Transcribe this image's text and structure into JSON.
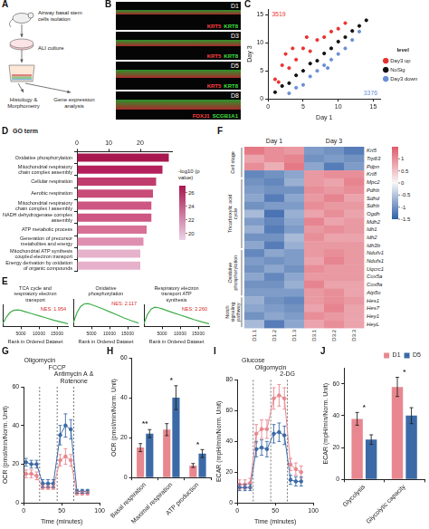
{
  "diagram": {
    "panel": "A",
    "steps": [
      "Airway basal stem cells isolation",
      "ALI culture",
      "Histology & Morphometry",
      "Gene expression analysis"
    ]
  },
  "images": {
    "panel": "B",
    "images": [
      {
        "label": "D1",
        "stains": [
          {
            "text": "KRT5",
            "color": "#ff4040"
          },
          {
            "text": "KRT8",
            "color": "#40e040"
          }
        ]
      },
      {
        "label": "D3",
        "stains": [
          {
            "text": "KRT5",
            "color": "#ff4040"
          },
          {
            "text": "KRT8",
            "color": "#40e040"
          }
        ]
      },
      {
        "label": "D5",
        "stains": [
          {
            "text": "KRT5",
            "color": "#ff4040"
          },
          {
            "text": "KRT8",
            "color": "#40e040"
          }
        ]
      },
      {
        "label": "D8",
        "stains": [
          {
            "text": "FOXJ1",
            "color": "#ff4040"
          },
          {
            "text": "SCGB1A1",
            "color": "#40e040"
          }
        ]
      }
    ]
  },
  "chart_data": [
    {
      "panel": "C",
      "type": "scatter",
      "x_label": "Day 1",
      "y_label": "Day 3",
      "marker": "circle",
      "xlim": [
        0,
        16
      ],
      "ylim": [
        0,
        16
      ],
      "xticks": [
        0,
        5,
        10,
        15
      ],
      "yticks": [
        0,
        5,
        10,
        15
      ],
      "legend": "right",
      "legend_title": "level",
      "series": [
        {
          "name": "Day3 up",
          "color": "#e8312f",
          "x": [
            1,
            1.5,
            2,
            2.5,
            3,
            3.5,
            4,
            5,
            5.5,
            6,
            7,
            8,
            9,
            10,
            11
          ],
          "values": [
            3.5,
            3,
            6,
            8,
            5.5,
            9,
            7,
            9,
            11,
            8.5,
            10.5,
            11,
            12,
            12.5,
            13.5
          ]
        },
        {
          "name": "NoSig",
          "color": "#111111",
          "x": [
            1,
            2,
            3,
            4,
            5,
            6,
            7,
            8,
            9,
            10,
            11,
            12,
            13,
            14
          ],
          "values": [
            1.2,
            2.3,
            2.8,
            4.2,
            5,
            6.3,
            6.8,
            8.1,
            9,
            10.2,
            11,
            12.1,
            13,
            14
          ]
        },
        {
          "name": "Day3 down",
          "color": "#6a8fd6",
          "x": [
            3,
            4,
            5,
            6,
            7,
            8,
            8.5,
            9,
            10,
            11,
            12,
            13
          ],
          "values": [
            1,
            2,
            2.5,
            4,
            5,
            6,
            5.5,
            7,
            8,
            9,
            10.5,
            12
          ]
        }
      ],
      "annotations": [
        {
          "text": "3519",
          "color": "#e8312f"
        },
        {
          "text": "3376",
          "color": "#6a8fd6"
        }
      ]
    },
    {
      "panel": "D",
      "type": "bar",
      "orientation": "horizontal",
      "title": "GO term",
      "categories": [
        "Oxidative phosphorylation",
        "Mitochondrial respiratory chain complex assembly",
        "Cellular respiration",
        "Aerobic respiration",
        "Mitochondrial respiratory chain complex I assembly",
        "NADH dehydrogenase complex assembly",
        "ATP metabolic process",
        "Generation of precursor metabolites and energy",
        "Mitochondrial ATP synthesis coupled electron transport",
        "Energy derivation by oxidation of organic compounds"
      ],
      "values": [
        29,
        27,
        25,
        24,
        23.5,
        23.5,
        22,
        21,
        20,
        20
      ],
      "colors": [
        "#a8174f",
        "#b3205c",
        "#c13c6e",
        "#c94b78",
        "#cd5682",
        "#cd5682",
        "#d77196",
        "#df8fb0",
        "#e6b1cb",
        "#e6b1cb"
      ],
      "xlim": [
        0,
        30
      ],
      "xticks": [
        0,
        10,
        20
      ],
      "colorbar": {
        "title": "-log10 (p value)",
        "range": [
          19,
          27
        ],
        "ticks": [
          20,
          22,
          24,
          26
        ],
        "colors": [
          "#ecd3e6",
          "#a8174f"
        ]
      }
    },
    {
      "panel": "E",
      "type": "line",
      "title": "TCA cycle and respiratory electron transport",
      "x_label": "Rank in Ordered Dataset",
      "x": [
        0,
        1000,
        2000,
        3000,
        4000,
        5000,
        6000,
        8000,
        10000,
        12000,
        14000,
        16000,
        18000
      ],
      "values": [
        0,
        0.25,
        0.42,
        0.5,
        0.52,
        0.5,
        0.46,
        0.38,
        0.3,
        0.22,
        0.14,
        0.07,
        0
      ],
      "color": "#3fae49",
      "xlim": [
        0,
        18000
      ],
      "xticks": [
        5000,
        10000,
        15000
      ],
      "ylim": [
        -0.1,
        0.7
      ],
      "tick_labels": "x",
      "annotations": [
        {
          "text": "NES: 1.954",
          "color": "#d62728"
        }
      ]
    },
    {
      "type": "line",
      "title": "Oxidative phosphorylation",
      "x_label": "Rank in Ordered Dataset",
      "x": [
        0,
        1000,
        2000,
        3000,
        4000,
        5000,
        6000,
        8000,
        10000,
        12000,
        14000,
        16000,
        18000
      ],
      "values": [
        0,
        0.3,
        0.48,
        0.56,
        0.57,
        0.54,
        0.5,
        0.42,
        0.33,
        0.24,
        0.15,
        0.07,
        0
      ],
      "color": "#3fae49",
      "xlim": [
        0,
        18000
      ],
      "xticks": [
        5000,
        10000,
        15000
      ],
      "ylim": [
        -0.1,
        0.7
      ],
      "tick_labels": "x",
      "annotations": [
        {
          "text": "NES: 2.117",
          "color": "#d62728"
        }
      ]
    },
    {
      "type": "line",
      "title": "Respiratory electron transport ATP synthesis",
      "x_label": "Rank in Ordered Dataset",
      "x": [
        0,
        1000,
        2000,
        3000,
        4000,
        5000,
        6000,
        8000,
        10000,
        12000,
        14000,
        16000,
        18000
      ],
      "values": [
        0,
        0.35,
        0.55,
        0.62,
        0.6,
        0.56,
        0.51,
        0.42,
        0.33,
        0.24,
        0.15,
        0.07,
        0
      ],
      "color": "#3fae49",
      "xlim": [
        0,
        18000
      ],
      "xticks": [
        5000,
        10000,
        15000
      ],
      "ylim": [
        -0.1,
        0.7
      ],
      "tick_labels": "x",
      "annotations": [
        {
          "text": "NES: 2.260",
          "color": "#d62728"
        }
      ]
    },
    {
      "panel": "F",
      "type": "heatmap",
      "column_groups": [
        {
          "label": "Day 1",
          "columns": [
            "D1.1",
            "D1.2",
            "D1.3"
          ]
        },
        {
          "label": "Day 3",
          "columns": [
            "D3.1",
            "D3.2",
            "D3.3"
          ]
        }
      ],
      "row_groups": [
        {
          "label": "Cell stage",
          "rows": [
            "Krt5",
            "Trp63",
            "Pdpn",
            "Krt8"
          ],
          "cells": [
            [
              1.2,
              1.0,
              0.9,
              -0.9,
              -1.0,
              -1.2
            ],
            [
              0.8,
              1.0,
              1.1,
              -1.0,
              -0.9,
              -1.0
            ],
            [
              1.0,
              0.7,
              1.2,
              -0.8,
              -1.2,
              -0.9
            ],
            [
              -1.1,
              -1.0,
              -0.8,
              0.9,
              1.0,
              1.0
            ]
          ]
        },
        {
          "label": "Tricarboxylic acid cycle",
          "rows": [
            "Mpc2",
            "Pdhb",
            "Sdhd",
            "Sdhb",
            "Ogdh",
            "Mdh2",
            "Idh1",
            "Idh2",
            "Idh3b"
          ],
          "cells": [
            [
              -1.0,
              -1.1,
              -0.7,
              0.9,
              0.8,
              1.1
            ],
            [
              -0.9,
              -1.0,
              -1.0,
              1.0,
              0.9,
              1.0
            ],
            [
              -0.8,
              -1.2,
              -0.8,
              0.9,
              1.1,
              0.8
            ],
            [
              -1.0,
              -0.9,
              -0.9,
              1.0,
              0.9,
              0.9
            ],
            [
              -0.6,
              -1.3,
              -0.7,
              0.8,
              1.0,
              0.8
            ],
            [
              -0.9,
              -1.1,
              -0.8,
              1.1,
              0.8,
              0.9
            ],
            [
              -0.7,
              -1.2,
              -0.9,
              0.9,
              1.0,
              0.9
            ],
            [
              -1.0,
              -1.0,
              -0.6,
              1.0,
              0.8,
              0.8
            ],
            [
              -0.8,
              -1.2,
              -0.7,
              0.9,
              0.9,
              0.9
            ]
          ]
        },
        {
          "label": "Oxidative phosphorylation",
          "rows": [
            "Ndufv1",
            "Ndufs1",
            "Uqcrc1",
            "Cox5a",
            "Cox8a",
            "Atp5o"
          ],
          "cells": [
            [
              -1.1,
              -0.8,
              -0.9,
              0.9,
              1.0,
              0.9
            ],
            [
              -0.9,
              -1.0,
              -0.9,
              0.8,
              1.1,
              0.9
            ],
            [
              -1.0,
              -0.8,
              -1.0,
              1.0,
              0.9,
              0.9
            ],
            [
              -0.8,
              -1.1,
              -0.8,
              0.9,
              0.9,
              0.9
            ],
            [
              -1.0,
              -1.0,
              -0.7,
              1.1,
              0.8,
              0.8
            ],
            [
              -0.9,
              -0.9,
              -0.9,
              0.9,
              1.0,
              0.8
            ]
          ]
        },
        {
          "label": "Notch signaling pathway",
          "rows": [
            "Hes1",
            "Hes7",
            "Hey1",
            "HeyL"
          ],
          "cells": [
            [
              -0.7,
              -1.0,
              -1.1,
              0.9,
              1.0,
              0.9
            ],
            [
              -0.8,
              -0.9,
              -1.0,
              0.8,
              1.1,
              0.8
            ],
            [
              -1.0,
              -0.8,
              -0.9,
              1.0,
              0.9,
              0.8
            ],
            [
              -0.6,
              -1.2,
              -0.8,
              0.8,
              1.0,
              0.8
            ]
          ]
        }
      ],
      "colorbar": {
        "range": [
          -1.5,
          1.5
        ],
        "ticks": [
          -1.5,
          -1,
          -0.5,
          0,
          0.5,
          1
        ],
        "colors": [
          "#2f5fa8",
          "#f7f7f7",
          "#e05a6a"
        ]
      }
    },
    {
      "panel": "G",
      "type": "line",
      "x_label": "Time (minutes)",
      "y_label": "OCR (pmol/min/Norm. Unit)",
      "marker": "circle",
      "x": [
        3,
        10,
        17,
        25,
        32,
        39,
        48,
        55,
        62,
        70,
        77,
        84
      ],
      "series": [
        {
          "color": "#e8878f",
          "values": [
            15,
            15,
            14,
            8,
            8,
            8,
            22,
            24,
            22,
            5,
            5,
            5
          ],
          "errors": [
            2,
            2,
            2,
            1,
            1,
            1,
            3,
            4,
            3,
            1,
            1,
            1
          ]
        },
        {
          "color": "#3b6aa6",
          "values": [
            21,
            20,
            20,
            10,
            10,
            10,
            35,
            40,
            38,
            6,
            6,
            6
          ],
          "errors": [
            2,
            2,
            2,
            2,
            2,
            2,
            5,
            6,
            5,
            1,
            1,
            1
          ]
        }
      ],
      "xlim": [
        0,
        100
      ],
      "xticks": [
        0,
        50,
        100
      ],
      "ylim": [
        0,
        60
      ],
      "yticks": [
        0,
        20,
        40,
        60
      ],
      "injections": [
        {
          "label": "Oligomycin",
          "x": 21
        },
        {
          "label": "FCCP",
          "x": 44
        },
        {
          "label": "Antimycin A & Rotenone",
          "x": 66
        }
      ]
    },
    {
      "panel": "H",
      "type": "bar",
      "y_label": "OCR (pmol/min/Norm. Unit)",
      "categories": [
        "Basal respiration",
        "Maximal respiration",
        "ATP production"
      ],
      "series": [
        {
          "color": "#e8878f",
          "values": [
            15,
            24,
            6
          ],
          "errors": [
            2,
            3,
            1
          ]
        },
        {
          "color": "#3b6aa6",
          "values": [
            22,
            40,
            12
          ],
          "errors": [
            2,
            6,
            2
          ]
        }
      ],
      "ylim": [
        0,
        60
      ],
      "yticks": [
        0,
        20,
        40,
        60
      ],
      "annotations": [
        "**",
        "*",
        "*"
      ]
    },
    {
      "panel": "I",
      "type": "line",
      "x_label": "Time (minutes)",
      "y_label": "ECAR (mpH/min/Norm. Unit)",
      "marker": "circle",
      "x": [
        3,
        10,
        17,
        25,
        32,
        39,
        48,
        55,
        62,
        70,
        77,
        84
      ],
      "series": [
        {
          "color": "#e8878f",
          "values": [
            12,
            12,
            13,
            45,
            48,
            48,
            68,
            70,
            68,
            25,
            22,
            20
          ],
          "errors": [
            3,
            3,
            3,
            6,
            6,
            6,
            7,
            7,
            7,
            4,
            4,
            4
          ]
        },
        {
          "color": "#3b6aa6",
          "values": [
            10,
            10,
            10,
            35,
            36,
            35,
            45,
            46,
            44,
            15,
            14,
            14
          ],
          "errors": [
            2,
            2,
            2,
            5,
            5,
            5,
            6,
            6,
            6,
            3,
            3,
            3
          ]
        }
      ],
      "xlim": [
        0,
        100
      ],
      "xticks": [
        0,
        50,
        100
      ],
      "ylim": [
        0,
        80
      ],
      "yticks": [
        0,
        20,
        40,
        60,
        80
      ],
      "injections": [
        {
          "label": "Glucose",
          "x": 21
        },
        {
          "label": "Oligomycin",
          "x": 44
        },
        {
          "label": "2-DG",
          "x": 66
        }
      ]
    },
    {
      "panel": "J",
      "type": "bar",
      "y_label": "ECAR (mpH/min/Norm. Unit)",
      "legend": "top",
      "categories": [
        "Glycolysis",
        "Glycolytic capacity"
      ],
      "series": [
        {
          "name": "D1",
          "color": "#e8878f",
          "values": [
            38,
            58
          ],
          "errors": [
            4,
            6
          ]
        },
        {
          "name": "D5",
          "color": "#3b6aa6",
          "values": [
            25,
            40
          ],
          "errors": [
            3,
            5
          ]
        }
      ],
      "ylim": [
        0,
        70
      ],
      "yticks": [
        0,
        20,
        40,
        60
      ],
      "annotations": [
        "*",
        "*"
      ]
    }
  ]
}
